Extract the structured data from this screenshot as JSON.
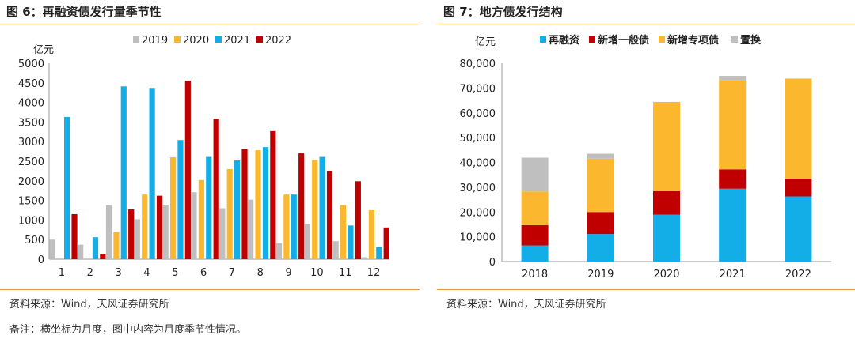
{
  "left": {
    "title": "图 6：再融资债发行量季节性",
    "source": "资料来源：Wind，天风证券研究所",
    "note": "备注：横坐标为月度，图中内容为月度季节性情况。"
  },
  "right": {
    "title": "图 7：地方债发行结构",
    "source": "资料来源：Wind，天风证券研究所"
  },
  "chart_data": [
    {
      "type": "bar",
      "title": "",
      "ylabel": "亿元",
      "xlabel": "",
      "ylim": [
        0,
        5000
      ],
      "yticks": [
        0,
        500,
        1000,
        1500,
        2000,
        2500,
        3000,
        3500,
        4000,
        4500,
        5000
      ],
      "legend_position": "top",
      "categories": [
        "1",
        "2",
        "3",
        "4",
        "5",
        "6",
        "7",
        "8",
        "9",
        "10",
        "11",
        "12"
      ],
      "series": [
        {
          "name": "2019",
          "color": "#bfbfbf",
          "values": [
            500,
            370,
            1380,
            1020,
            1390,
            1710,
            1300,
            1520,
            410,
            900,
            460,
            50
          ]
        },
        {
          "name": "2020",
          "color": "#fbb82e",
          "values": [
            0,
            0,
            690,
            1650,
            2600,
            2020,
            2300,
            2780,
            1650,
            2530,
            1380,
            1250
          ]
        },
        {
          "name": "2021",
          "color": "#13aee8",
          "values": [
            3630,
            560,
            4410,
            4370,
            3040,
            2610,
            2520,
            2860,
            1650,
            2610,
            860,
            310
          ]
        },
        {
          "name": "2022",
          "color": "#c00000",
          "values": [
            1150,
            140,
            1270,
            1620,
            4550,
            3580,
            2810,
            3270,
            2700,
            2250,
            1990,
            810
          ]
        }
      ]
    },
    {
      "type": "bar",
      "stacked": true,
      "title": "",
      "ylabel": "亿元",
      "xlabel": "",
      "ylim": [
        0,
        80000
      ],
      "yticks": [
        0,
        10000,
        20000,
        30000,
        40000,
        50000,
        60000,
        70000,
        80000
      ],
      "ytick_labels": [
        "0",
        "10,000",
        "20,000",
        "30,000",
        "40,000",
        "50,000",
        "60,000",
        "70,000",
        "80,000"
      ],
      "legend_position": "top",
      "categories": [
        "2018",
        "2019",
        "2020",
        "2021",
        "2022"
      ],
      "series": [
        {
          "name": "再融资",
          "color": "#13aee8",
          "values": [
            6500,
            11100,
            18900,
            29400,
            26300
          ]
        },
        {
          "name": "新增一般债",
          "color": "#c00000",
          "values": [
            8200,
            8900,
            9500,
            7800,
            7200
          ]
        },
        {
          "name": "新增专项债",
          "color": "#fbb82e",
          "values": [
            13600,
            21500,
            36000,
            36000,
            40300
          ]
        },
        {
          "name": "置换",
          "color": "#bfbfbf",
          "values": [
            13600,
            2000,
            0,
            1700,
            0
          ]
        }
      ]
    }
  ]
}
